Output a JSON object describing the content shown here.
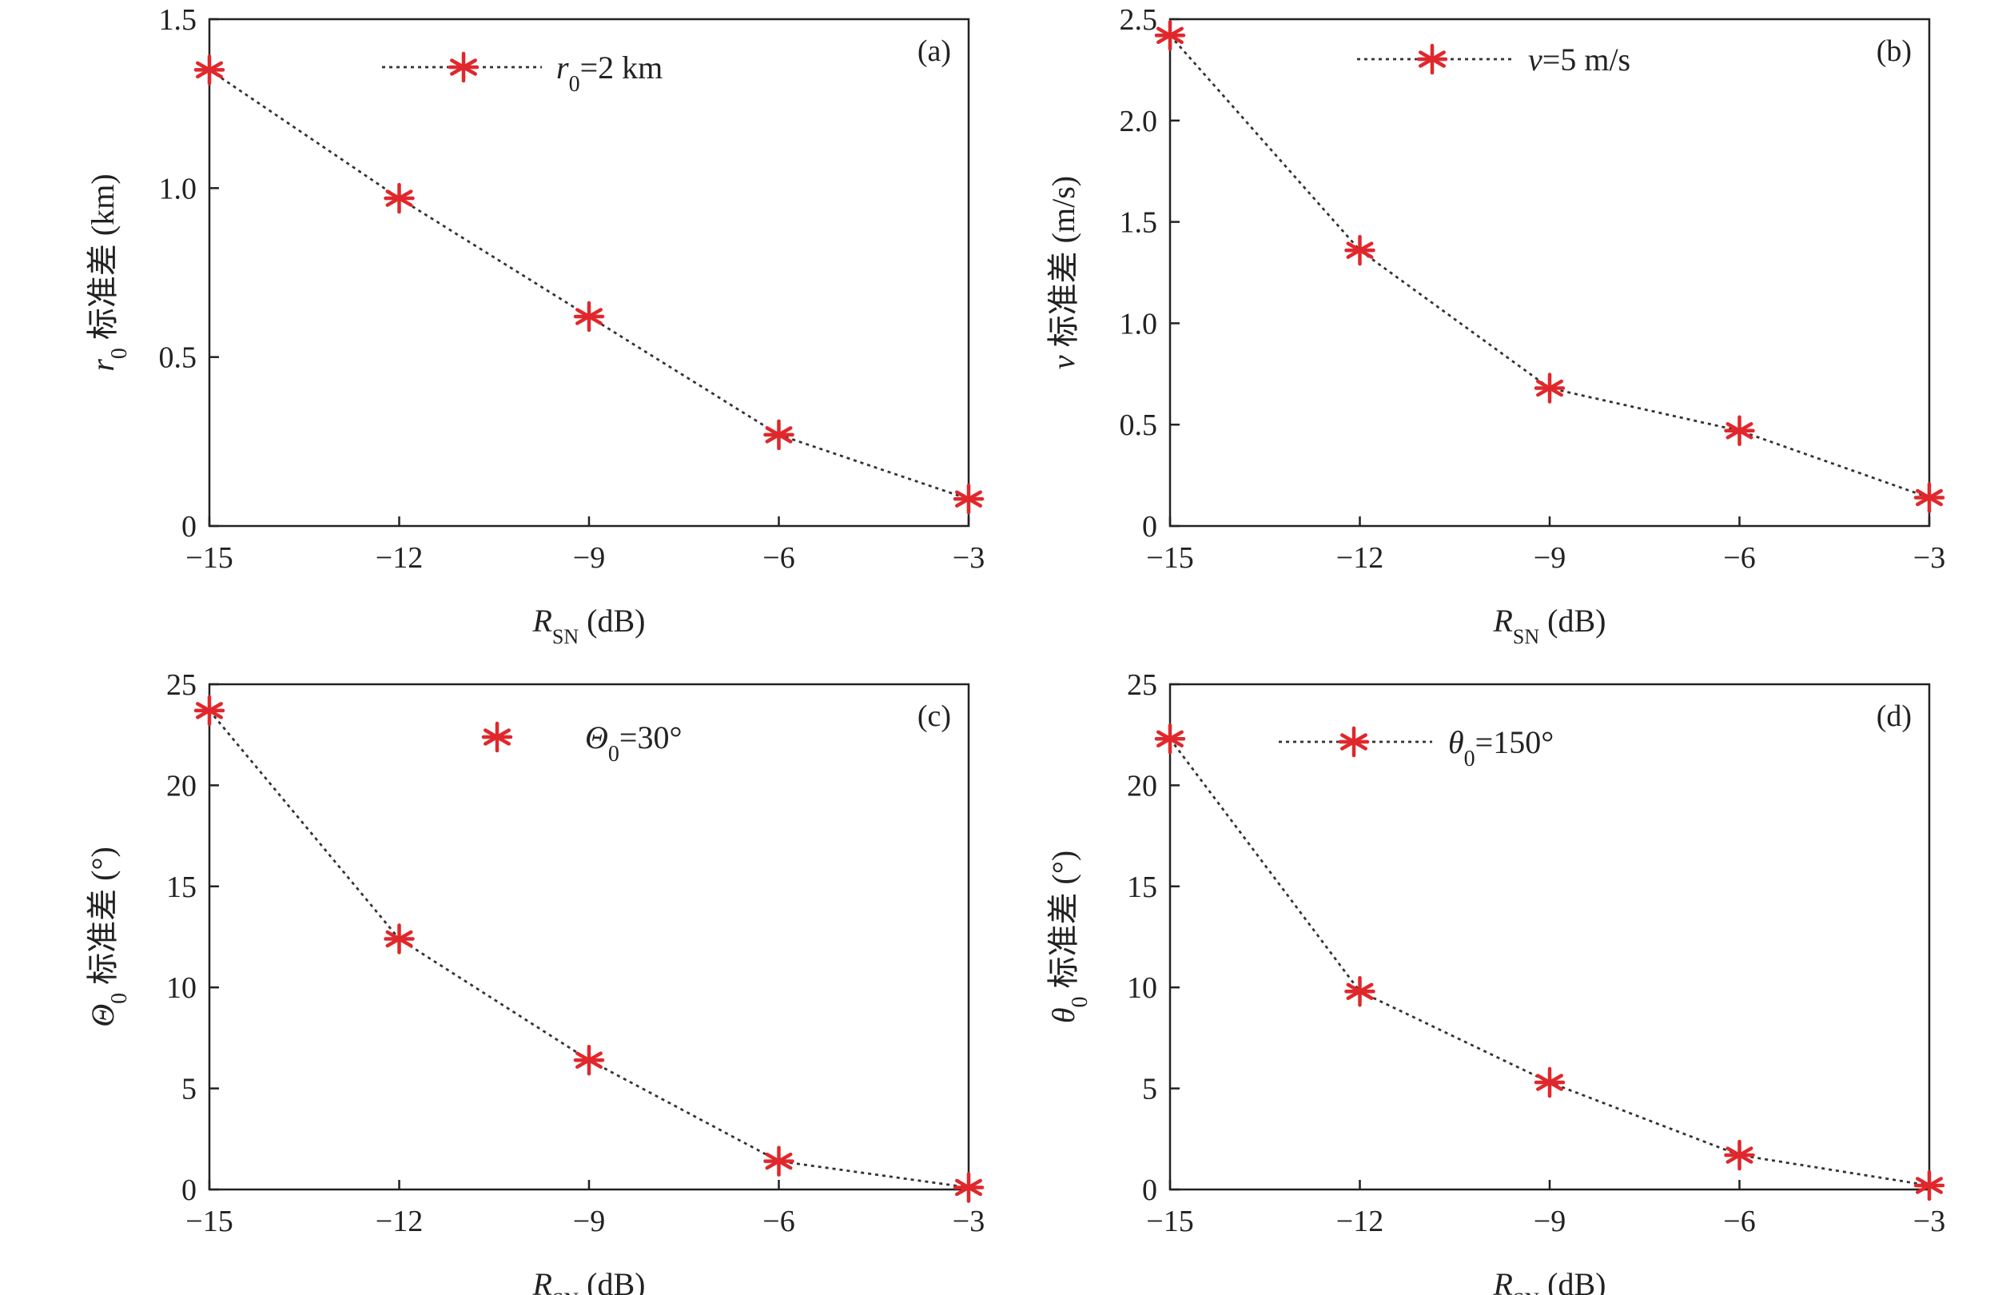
{
  "colors": {
    "marker": "#e0282c",
    "line": "#333333",
    "axes": "#222222"
  },
  "chart_data": [
    {
      "type": "line",
      "panel_label": "(a)",
      "x": [
        -15,
        -12,
        -9,
        -6,
        -3
      ],
      "xticks": [
        "−15",
        "−12",
        "−9",
        "−6",
        "−3"
      ],
      "xlim": [
        -15,
        -3
      ],
      "ylim": [
        0,
        1.5
      ],
      "yticks": [
        0,
        0.5,
        1.0,
        1.5
      ],
      "ytick_labels": [
        "0",
        "0.5",
        "1.0",
        "1.5"
      ],
      "xlabel": {
        "main": "R",
        "sub": "SN",
        "unit": " (dB)"
      },
      "ylabel": {
        "main": "r",
        "sub": "0",
        "rest": " 标准差 (km)"
      },
      "series": [
        {
          "values": [
            1.35,
            0.97,
            0.62,
            0.27,
            0.08
          ],
          "legend": {
            "main": "r",
            "sub": "0",
            "rest": "=2 km"
          },
          "line_in_legend": true,
          "line_style": "dotted",
          "marker": "asterisk"
        }
      ],
      "legend_position": "top-center",
      "grid": false
    },
    {
      "type": "line",
      "panel_label": "(b)",
      "x": [
        -15,
        -12,
        -9,
        -6,
        -3
      ],
      "xticks": [
        "−15",
        "−12",
        "−9",
        "−6",
        "−3"
      ],
      "xlim": [
        -15,
        -3
      ],
      "ylim": [
        0,
        2.5
      ],
      "yticks": [
        0,
        0.5,
        1.0,
        1.5,
        2.0,
        2.5
      ],
      "ytick_labels": [
        "0",
        "0.5",
        "1.0",
        "1.5",
        "2.0",
        "2.5"
      ],
      "xlabel": {
        "main": "R",
        "sub": "SN",
        "unit": " (dB)"
      },
      "ylabel": {
        "main": "v",
        "sub": "",
        "rest": " 标准差 (m/s)"
      },
      "series": [
        {
          "values": [
            2.42,
            1.36,
            0.68,
            0.47,
            0.14
          ],
          "legend": {
            "main": "v",
            "sub": "",
            "rest": "=5 m/s"
          },
          "line_in_legend": true,
          "line_style": "dotted",
          "marker": "asterisk"
        }
      ],
      "legend_position": "top-center",
      "grid": false
    },
    {
      "type": "line",
      "panel_label": "(c)",
      "x": [
        -15,
        -12,
        -9,
        -6,
        -3
      ],
      "xticks": [
        "−15",
        "−12",
        "−9",
        "−6",
        "−3"
      ],
      "xlim": [
        -15,
        -3
      ],
      "ylim": [
        0,
        25
      ],
      "yticks": [
        0,
        5,
        10,
        15,
        20,
        25
      ],
      "ytick_labels": [
        "0",
        "5",
        "10",
        "15",
        "20",
        "25"
      ],
      "xlabel": {
        "main": "R",
        "sub": "SN",
        "unit": " (dB)"
      },
      "ylabel": {
        "main": "Θ",
        "sub": "0",
        "rest": " 标准差 (°)"
      },
      "series": [
        {
          "values": [
            23.7,
            12.4,
            6.4,
            1.4,
            0.1
          ],
          "legend": {
            "main": "Θ",
            "sub": "0",
            "rest": "=30°"
          },
          "line_in_legend": false,
          "line_style": "dotted",
          "marker": "asterisk"
        }
      ],
      "legend_position": "top-center",
      "grid": false
    },
    {
      "type": "line",
      "panel_label": "(d)",
      "x": [
        -15,
        -12,
        -9,
        -6,
        -3
      ],
      "xticks": [
        "−15",
        "−12",
        "−9",
        "−6",
        "−3"
      ],
      "xlim": [
        -15,
        -3
      ],
      "ylim": [
        0,
        25
      ],
      "yticks": [
        0,
        5,
        10,
        15,
        20,
        25
      ],
      "ytick_labels": [
        "0",
        "5",
        "10",
        "15",
        "20",
        "25"
      ],
      "xlabel": {
        "main": "R",
        "sub": "SN",
        "unit": " (dB)"
      },
      "ylabel": {
        "main": "θ",
        "sub": "0",
        "rest": " 标准差 (°)"
      },
      "series": [
        {
          "values": [
            22.3,
            9.8,
            5.3,
            1.7,
            0.2
          ],
          "legend": {
            "main": "θ",
            "sub": "0",
            "rest": "=150°"
          },
          "line_in_legend": true,
          "line_style": "dotted",
          "marker": "asterisk"
        }
      ],
      "legend_position": "top-center",
      "grid": false
    }
  ]
}
